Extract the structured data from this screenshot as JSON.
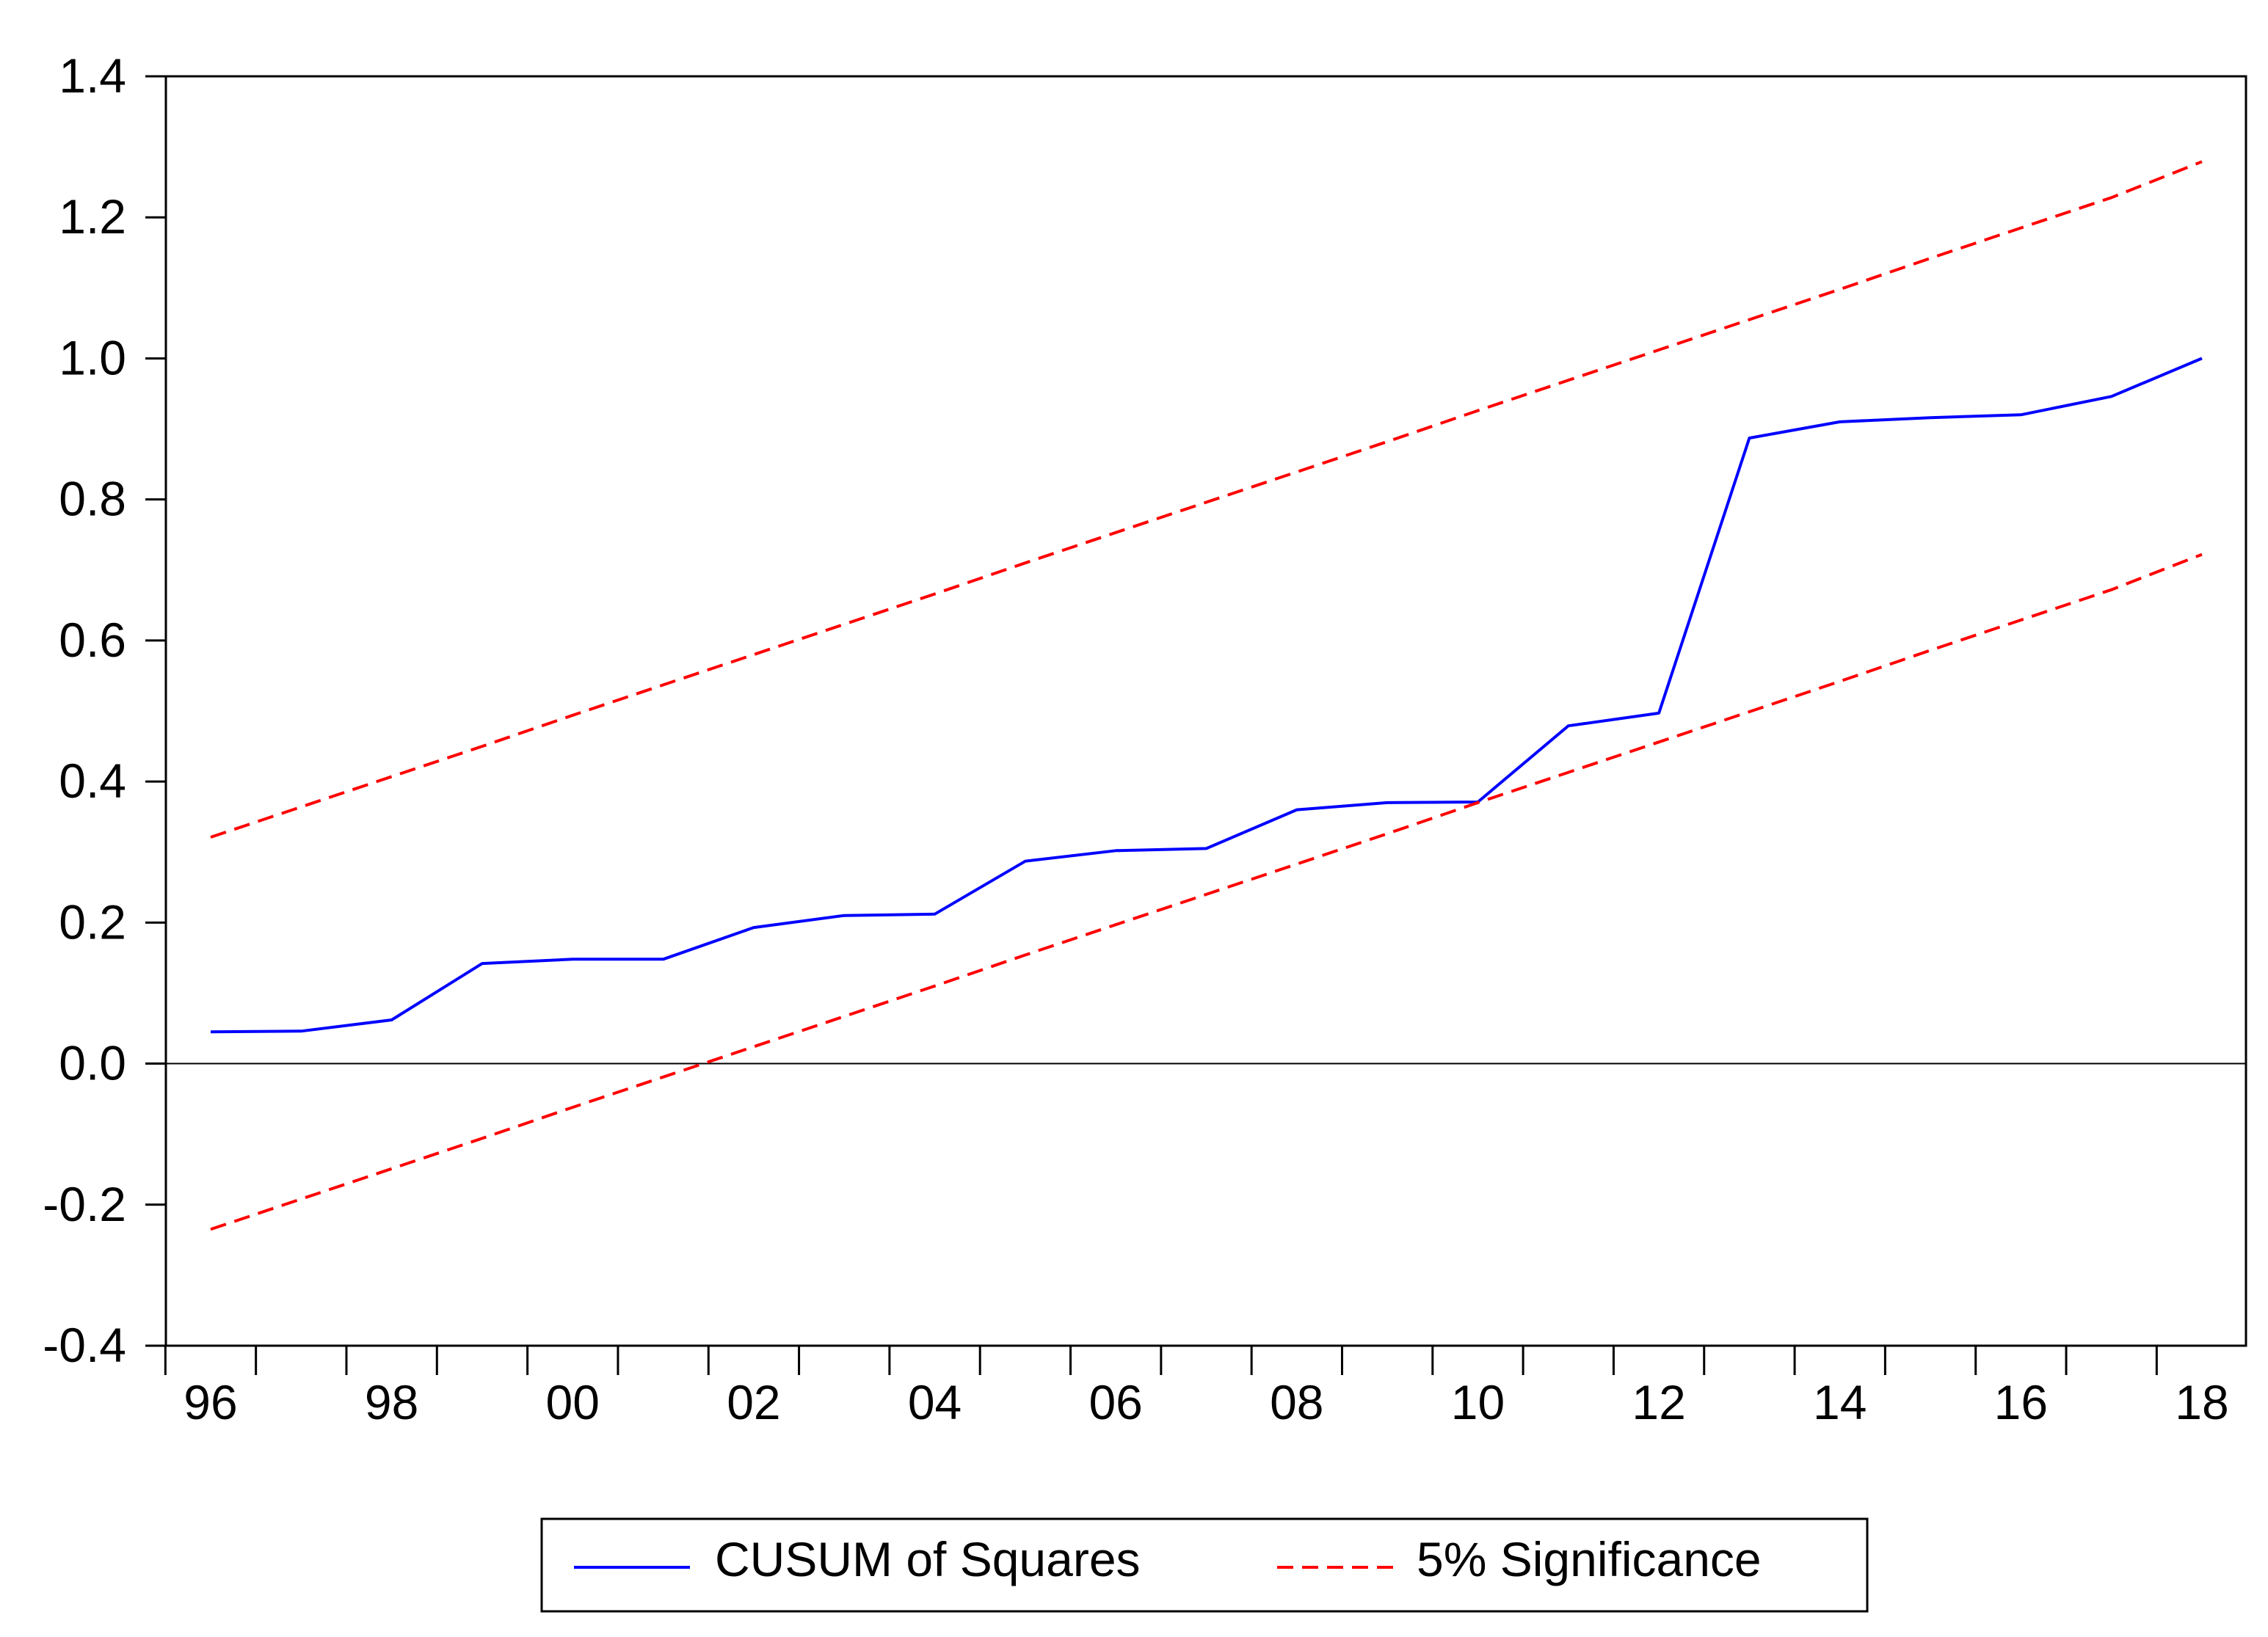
{
  "chart_data": {
    "type": "line",
    "title": "",
    "xlabel": "",
    "ylabel": "",
    "x": [
      1996,
      1997,
      1998,
      1999,
      2000,
      2001,
      2002,
      2003,
      2004,
      2005,
      2006,
      2007,
      2008,
      2009,
      2010,
      2011,
      2012,
      2013,
      2014,
      2015,
      2016,
      2017,
      2018
    ],
    "x_tick_labels": [
      "96",
      "98",
      "00",
      "02",
      "04",
      "06",
      "08",
      "10",
      "12",
      "14",
      "16",
      "18"
    ],
    "x_tick_values": [
      1996,
      1998,
      2000,
      2002,
      2004,
      2006,
      2008,
      2010,
      2012,
      2014,
      2016,
      2018
    ],
    "ylim": [
      -0.4,
      1.4
    ],
    "y_ticks": [
      -0.4,
      -0.2,
      0.0,
      0.2,
      0.4,
      0.6,
      0.8,
      1.0,
      1.2,
      1.4
    ],
    "y_tick_labels": [
      "-0.4",
      "-0.2",
      "0.0",
      "0.2",
      "0.4",
      "0.6",
      "0.8",
      "1.0",
      "1.2",
      "1.4"
    ],
    "grid": false,
    "zero_line": true,
    "legend_position": "bottom",
    "series": [
      {
        "name": "CUSUM of Squares",
        "color": "#0000ff",
        "style": "solid",
        "values": [
          0.045,
          0.046,
          0.062,
          0.142,
          0.148,
          0.148,
          0.193,
          0.21,
          0.212,
          0.287,
          0.302,
          0.305,
          0.36,
          0.37,
          0.371,
          0.479,
          0.497,
          0.887,
          0.91,
          0.916,
          0.92,
          0.946,
          1.0
        ]
      },
      {
        "name": "5% Significance",
        "color": "#ff0000",
        "style": "dashed",
        "values": [
          0.321,
          0.364,
          0.407,
          0.45,
          0.494,
          0.537,
          0.58,
          0.623,
          0.666,
          0.71,
          0.753,
          0.796,
          0.839,
          0.882,
          0.926,
          0.969,
          1.012,
          1.055,
          1.098,
          1.142,
          1.185,
          1.228,
          1.279
        ]
      },
      {
        "name": "",
        "color": "#ff0000",
        "style": "dashed",
        "values": [
          -0.235,
          -0.192,
          -0.149,
          -0.106,
          -0.062,
          -0.019,
          0.024,
          0.067,
          0.11,
          0.154,
          0.197,
          0.24,
          0.283,
          0.326,
          0.37,
          0.413,
          0.456,
          0.499,
          0.542,
          0.586,
          0.629,
          0.672,
          0.722
        ]
      }
    ]
  }
}
